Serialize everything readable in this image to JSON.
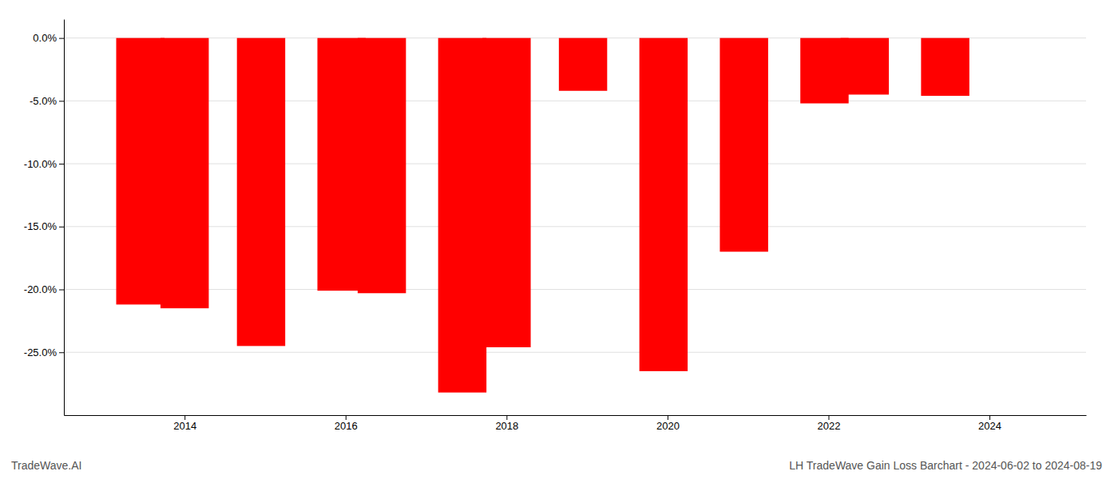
{
  "chart_data": {
    "type": "bar",
    "title": "LH TradeWave Gain Loss Barchart - 2024-06-02 to 2024-08-19",
    "annotations": [
      "TradeWave.AI"
    ],
    "x": [
      2013.45,
      2014.0,
      2014.95,
      2015.95,
      2016.45,
      2017.45,
      2018.0,
      2018.95,
      2019.95,
      2020.95,
      2021.95,
      2022.45,
      2023.45
    ],
    "values": [
      -21.2,
      -21.5,
      -24.5,
      -20.1,
      -20.3,
      -28.2,
      -24.6,
      -4.2,
      -26.5,
      -17.0,
      -5.2,
      -4.5,
      -4.6
    ],
    "color": "#ff0000",
    "xlim": [
      2012.5,
      2025.2
    ],
    "xticks": [
      2014,
      2016,
      2018,
      2020,
      2022,
      2024
    ],
    "ylim": [
      -30,
      1.5
    ],
    "yticks": [
      {
        "value": 0.0,
        "label": "0.0%"
      },
      {
        "value": -5.0,
        "label": "-5.0%"
      },
      {
        "value": -10.0,
        "label": "-10.0%"
      },
      {
        "value": -15.0,
        "label": "-15.0%"
      },
      {
        "value": -20.0,
        "label": "-20.0%"
      },
      {
        "value": -25.0,
        "label": "-25.0%"
      }
    ],
    "grid": true
  }
}
